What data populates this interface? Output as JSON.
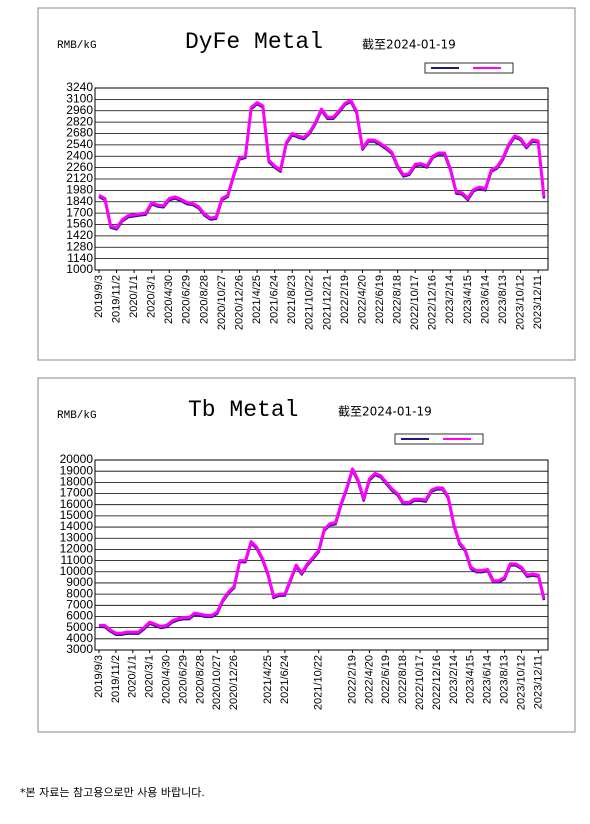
{
  "chart_data": [
    {
      "type": "line",
      "title": "DyFe Metal",
      "unit": "RMB/kG",
      "date_note": "截至2024-01-19",
      "categories": [
        "2019/9/3",
        null,
        null,
        "2019/11/2",
        null,
        null,
        "2020/1/1",
        null,
        null,
        "2020/3/1",
        null,
        null,
        "2020/4/30",
        null,
        null,
        "2020/6/29",
        null,
        null,
        "2020/8/28",
        null,
        null,
        "2020/10/27",
        null,
        null,
        "2020/12/26",
        null,
        null,
        "2021/4/25",
        null,
        null,
        "2021/6/24",
        null,
        null,
        "2021/8/23",
        null,
        null,
        "2021/10/22",
        null,
        null,
        "2021/12/21",
        null,
        null,
        "2022/2/19",
        null,
        null,
        "2022/4/20",
        null,
        null,
        "2022/6/19",
        null,
        null,
        "2022/8/18",
        null,
        null,
        "2022/10/17",
        null,
        null,
        "2022/12/16",
        null,
        null,
        "2023/2/14",
        null,
        null,
        "2023/4/15",
        null,
        null,
        "2023/6/14",
        null,
        null,
        "2023/8/13",
        null,
        null,
        "2023/10/12",
        null,
        null,
        "2023/12/11",
        null
      ],
      "series": [
        {
          "color": "#1c1c78",
          "values": [
            1920,
            1880,
            1540,
            1520,
            1620,
            1670,
            1680,
            1690,
            1700,
            1830,
            1800,
            1790,
            1880,
            1900,
            1870,
            1830,
            1820,
            1780,
            1690,
            1640,
            1650,
            1880,
            1920,
            2170,
            2380,
            2400,
            3000,
            3060,
            3020,
            2350,
            2280,
            2230,
            2570,
            2680,
            2650,
            2630,
            2700,
            2820,
            2980,
            2880,
            2880,
            2960,
            3050,
            3090,
            2950,
            2500,
            2600,
            2600,
            2560,
            2510,
            2450,
            2280,
            2170,
            2190,
            2300,
            2310,
            2280,
            2400,
            2440,
            2440,
            2250,
            1960,
            1950,
            1880,
            1990,
            2020,
            2000,
            2230,
            2270,
            2380,
            2550,
            2650,
            2620,
            2520,
            2600,
            2590,
            1900
          ]
        },
        {
          "color": "#ff00ff",
          "values": [
            1920,
            1880,
            1540,
            1520,
            1620,
            1670,
            1680,
            1690,
            1700,
            1830,
            1800,
            1790,
            1880,
            1900,
            1870,
            1830,
            1820,
            1780,
            1690,
            1640,
            1650,
            1880,
            1920,
            2170,
            2380,
            2400,
            3000,
            3060,
            3020,
            2350,
            2280,
            2230,
            2570,
            2680,
            2650,
            2630,
            2700,
            2820,
            2980,
            2880,
            2880,
            2960,
            3050,
            3090,
            2950,
            2500,
            2600,
            2600,
            2560,
            2510,
            2450,
            2280,
            2170,
            2190,
            2300,
            2310,
            2280,
            2400,
            2440,
            2440,
            2250,
            1960,
            1950,
            1880,
            1990,
            2020,
            2000,
            2230,
            2270,
            2380,
            2550,
            2650,
            2620,
            2520,
            2600,
            2590,
            1900
          ]
        }
      ],
      "ylim": [
        1000,
        3240
      ],
      "yticks": [
        1000,
        1140,
        1280,
        1420,
        1560,
        1700,
        1840,
        1980,
        2120,
        2260,
        2400,
        2540,
        2680,
        2820,
        2960,
        3100,
        3240
      ],
      "grid": true
    },
    {
      "type": "line",
      "title": "Tb Metal",
      "unit": "RMB/kG",
      "date_note": "截至2024-01-19",
      "categories": [
        "2019/9/3",
        null,
        null,
        "2019/11/2",
        null,
        null,
        "2020/1/1",
        null,
        null,
        "2020/3/1",
        null,
        null,
        "2020/4/30",
        null,
        null,
        "2020/6/29",
        null,
        null,
        "2020/8/28",
        null,
        null,
        "2020/10/27",
        null,
        null,
        "2020/12/26",
        null,
        null,
        null,
        null,
        null,
        "2021/4/25",
        null,
        null,
        "2021/6/24",
        null,
        null,
        null,
        null,
        null,
        "2021/10/22",
        null,
        null,
        null,
        null,
        null,
        "2022/2/19",
        null,
        null,
        "2022/4/20",
        null,
        null,
        "2022/6/19",
        null,
        null,
        "2022/8/18",
        null,
        null,
        "2022/10/17",
        null,
        null,
        "2022/12/16",
        null,
        null,
        "2023/2/14",
        null,
        null,
        "2023/4/15",
        null,
        null,
        "2023/6/14",
        null,
        null,
        "2023/8/13",
        null,
        null,
        "2023/10/12",
        null,
        null,
        "2023/12/11",
        null
      ],
      "series": [
        {
          "color": "#1c1c78",
          "values": [
            5200,
            5200,
            4800,
            4500,
            4500,
            4600,
            4600,
            4600,
            5000,
            5500,
            5300,
            5100,
            5200,
            5600,
            5800,
            5900,
            5900,
            6300,
            6200,
            6100,
            6100,
            6400,
            7500,
            8200,
            8700,
            11000,
            11000,
            12700,
            12200,
            11200,
            9800,
            7800,
            8000,
            8000,
            9300,
            10600,
            9900,
            10700,
            11300,
            11900,
            13800,
            14300,
            14400,
            16100,
            17500,
            19200,
            18200,
            16500,
            18300,
            18800,
            18600,
            18000,
            17400,
            17000,
            16200,
            16200,
            16500,
            16500,
            16400,
            17300,
            17500,
            17500,
            16700,
            14200,
            12600,
            12000,
            10400,
            10100,
            10100,
            10200,
            9200,
            9200,
            9500,
            10700,
            10700,
            10400,
            9700,
            9800,
            9700,
            7600
          ]
        },
        {
          "color": "#ff00ff",
          "values": [
            5200,
            5200,
            4800,
            4500,
            4500,
            4600,
            4600,
            4600,
            5000,
            5500,
            5300,
            5100,
            5200,
            5600,
            5800,
            5900,
            5900,
            6300,
            6200,
            6100,
            6100,
            6400,
            7500,
            8200,
            8700,
            11000,
            11000,
            12700,
            12200,
            11200,
            9800,
            7800,
            8000,
            8000,
            9300,
            10600,
            9900,
            10700,
            11300,
            11900,
            13800,
            14300,
            14400,
            16100,
            17500,
            19200,
            18200,
            16500,
            18300,
            18800,
            18600,
            18000,
            17400,
            17000,
            16200,
            16200,
            16500,
            16500,
            16400,
            17300,
            17500,
            17500,
            16700,
            14200,
            12600,
            12000,
            10400,
            10100,
            10100,
            10200,
            9200,
            9200,
            9500,
            10700,
            10700,
            10400,
            9700,
            9800,
            9700,
            7600
          ]
        }
      ],
      "ylim": [
        3000,
        20000
      ],
      "yticks": [
        3000,
        4000,
        5000,
        6000,
        7000,
        8000,
        9000,
        10000,
        11000,
        12000,
        13000,
        14000,
        15000,
        16000,
        17000,
        18000,
        19000,
        20000
      ],
      "grid": true
    }
  ],
  "footnote": "*본 자료는 참고용으로만 사용 바랍니다."
}
